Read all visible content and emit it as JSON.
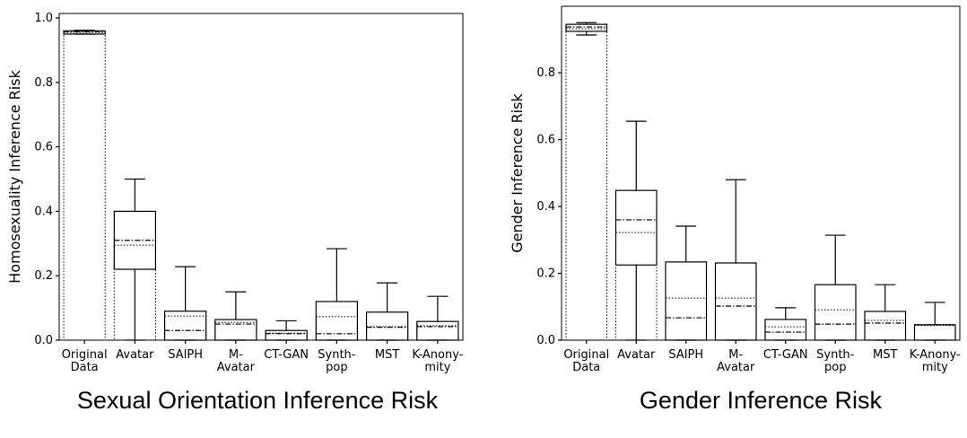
{
  "chart_data": [
    {
      "type": "box",
      "title": "Sexual Orientation Inference Risk",
      "y_label": "Homosexuality Inference Risk",
      "categories": [
        "Original\nData",
        "Avatar",
        "SAIPH",
        "M-\nAvatar",
        "CT-GAN",
        "Synth-\npop",
        "MST",
        "K-Anony-\nmity"
      ],
      "whislo": [
        0.95,
        0,
        0,
        0,
        0,
        0,
        0,
        0
      ],
      "q1": [
        0.95,
        0.22,
        0,
        0,
        0,
        0,
        0,
        0
      ],
      "median": [
        0.957,
        0.31,
        0.03,
        0.05,
        0.02,
        0.02,
        0.04,
        0.042
      ],
      "q3": [
        0.96,
        0.4,
        0.09,
        0.064,
        0.03,
        0.12,
        0.087,
        0.058
      ],
      "whishi": [
        0.962,
        0.5,
        0.228,
        0.15,
        0.06,
        0.284,
        0.178,
        0.136
      ],
      "mean": [
        0.955,
        0.295,
        0.075,
        0.055,
        0.022,
        0.073,
        0.042,
        0.045
      ],
      "ylim": [
        0,
        1.014
      ],
      "yticks": [
        {
          "value": 0,
          "label": "0.0"
        },
        {
          "value": 0.2,
          "label": "0.2"
        },
        {
          "value": 0.4,
          "label": "0.4"
        },
        {
          "value": 0.6,
          "label": "0.6"
        },
        {
          "value": 0.8,
          "label": "0.8"
        },
        {
          "value": 1.0,
          "label": "1.0"
        }
      ]
    },
    {
      "type": "box",
      "title": "Gender Inference Risk",
      "y_label": "Gender Inference Risk",
      "categories": [
        "Original\nData",
        "Avatar",
        "SAIPH",
        "M-\nAvatar",
        "CT-GAN",
        "Synth-\npop",
        "MST",
        "K-Anony-\nmity"
      ],
      "whislo": [
        0.913,
        0,
        0,
        0,
        0,
        0,
        0,
        0
      ],
      "q1": [
        0.924,
        0.225,
        0,
        0,
        0,
        0,
        0,
        0
      ],
      "median": [
        0.937,
        0.36,
        0.067,
        0.102,
        0.024,
        0.048,
        0.051,
        0.046
      ],
      "q3": [
        0.945,
        0.448,
        0.234,
        0.231,
        0.062,
        0.166,
        0.086,
        0.046
      ],
      "whishi": [
        0.95,
        0.655,
        0.341,
        0.48,
        0.097,
        0.314,
        0.166,
        0.113
      ],
      "mean": [
        0.932,
        0.322,
        0.126,
        0.126,
        0.04,
        0.091,
        0.059,
        0.044
      ],
      "ylim": [
        0,
        0.999
      ],
      "yticks": [
        {
          "value": 0,
          "label": "0.0"
        },
        {
          "value": 0.2,
          "label": "0.2"
        },
        {
          "value": 0.4,
          "label": "0.4"
        },
        {
          "value": 0.6,
          "label": "0.6"
        },
        {
          "value": 0.8,
          "label": "0.8"
        }
      ]
    }
  ]
}
